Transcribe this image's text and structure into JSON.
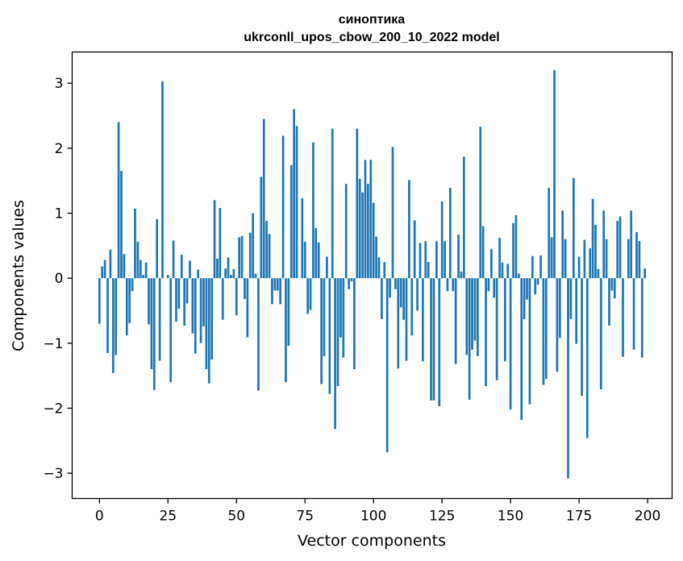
{
  "chart_data": {
    "type": "bar",
    "title": "синоптика",
    "subtitle": "ukrconll_upos_cbow_200_10_2022 model",
    "xlabel": "Vector components",
    "ylabel": "Components values",
    "xlim": [
      -9.95,
      208.95
    ],
    "ylim": [
      -3.39,
      3.48
    ],
    "xticks": [
      0,
      25,
      50,
      75,
      100,
      125,
      150,
      175,
      200
    ],
    "xtick_labels": [
      "0",
      "25",
      "50",
      "75",
      "100",
      "125",
      "150",
      "175",
      "200"
    ],
    "yticks": [
      -3,
      -2,
      -1,
      0,
      1,
      2,
      3
    ],
    "ytick_labels": [
      "−3",
      "−2",
      "−1",
      "0",
      "1",
      "2",
      "3"
    ],
    "grid": false,
    "bar_color": "#1f77b4",
    "x": [
      0,
      1,
      2,
      3,
      4,
      5,
      6,
      7,
      8,
      9,
      10,
      11,
      12,
      13,
      14,
      15,
      16,
      17,
      18,
      19,
      20,
      21,
      22,
      23,
      24,
      25,
      26,
      27,
      28,
      29,
      30,
      31,
      32,
      33,
      34,
      35,
      36,
      37,
      38,
      39,
      40,
      41,
      42,
      43,
      44,
      45,
      46,
      47,
      48,
      49,
      50,
      51,
      52,
      53,
      54,
      55,
      56,
      57,
      58,
      59,
      60,
      61,
      62,
      63,
      64,
      65,
      66,
      67,
      68,
      69,
      70,
      71,
      72,
      73,
      74,
      75,
      76,
      77,
      78,
      79,
      80,
      81,
      82,
      83,
      84,
      85,
      86,
      87,
      88,
      89,
      90,
      91,
      92,
      93,
      94,
      95,
      96,
      97,
      98,
      99,
      100,
      101,
      102,
      103,
      104,
      105,
      106,
      107,
      108,
      109,
      110,
      111,
      112,
      113,
      114,
      115,
      116,
      117,
      118,
      119,
      120,
      121,
      122,
      123,
      124,
      125,
      126,
      127,
      128,
      129,
      130,
      131,
      132,
      133,
      134,
      135,
      136,
      137,
      138,
      139,
      140,
      141,
      142,
      143,
      144,
      145,
      146,
      147,
      148,
      149,
      150,
      151,
      152,
      153,
      154,
      155,
      156,
      157,
      158,
      159,
      160,
      161,
      162,
      163,
      164,
      165,
      166,
      167,
      168,
      169,
      170,
      171,
      172,
      173,
      174,
      175,
      176,
      177,
      178,
      179,
      180,
      181,
      182,
      183,
      184,
      185,
      186,
      187,
      188,
      189,
      190,
      191,
      192,
      193,
      194,
      195,
      196,
      197,
      198,
      199
    ],
    "values": [
      -0.7,
      0.18,
      0.28,
      -1.15,
      0.44,
      -1.46,
      -1.18,
      2.4,
      1.65,
      0.37,
      -0.88,
      -0.69,
      -0.2,
      1.07,
      0.56,
      0.28,
      0.05,
      0.24,
      -0.71,
      -1.4,
      -1.72,
      0.91,
      -1.27,
      3.03,
      0.0,
      0.05,
      -1.6,
      0.58,
      -0.67,
      -0.47,
      0.36,
      -0.73,
      -0.39,
      0.27,
      -0.85,
      -1.16,
      0.13,
      -1.0,
      -0.74,
      -1.4,
      -1.62,
      -1.25,
      1.2,
      0.3,
      1.08,
      -0.64,
      0.15,
      0.32,
      0.05,
      0.14,
      -0.57,
      0.63,
      0.65,
      -0.32,
      -0.91,
      0.7,
      1.0,
      0.07,
      -1.73,
      1.56,
      2.45,
      0.88,
      0.68,
      -0.4,
      -0.19,
      -0.19,
      -0.4,
      2.19,
      -1.6,
      -1.04,
      1.74,
      2.6,
      2.34,
      0.0,
      1.23,
      0.56,
      -0.55,
      -0.49,
      2.09,
      0.77,
      0.55,
      -1.63,
      -1.2,
      0.33,
      -1.78,
      2.3,
      -2.32,
      -1.66,
      -0.91,
      -1.22,
      1.45,
      -0.17,
      -0.05,
      -1.4,
      2.3,
      1.53,
      1.32,
      1.82,
      1.45,
      1.82,
      1.16,
      0.64,
      0.32,
      -0.63,
      0.25,
      -2.68,
      -0.3,
      2.02,
      -0.17,
      -1.39,
      -0.45,
      -0.64,
      -1.27,
      1.51,
      -0.88,
      0.89,
      -0.5,
      0.54,
      -1.28,
      0.57,
      0.25,
      -1.88,
      -1.88,
      0.57,
      -1.97,
      1.18,
      0.57,
      -0.2,
      1.39,
      -0.2,
      -1.32,
      0.67,
      0.1,
      1.87,
      -1.18,
      -1.87,
      -1.1,
      -0.96,
      -1.2,
      2.33,
      0.8,
      -1.66,
      -0.2,
      0.45,
      -0.3,
      -1.57,
      0.62,
      0.24,
      -1.28,
      0.22,
      -2.02,
      0.85,
      0.97,
      0.07,
      -2.18,
      -0.63,
      -0.33,
      -1.94,
      0.34,
      -0.25,
      -0.1,
      0.35,
      -1.64,
      -1.55,
      1.39,
      0.63,
      3.2,
      -1.44,
      -0.92,
      1.04,
      0.6,
      -3.08,
      -0.63,
      1.54,
      -1.01,
      0.33,
      -1.81,
      0.59,
      -2.46,
      0.46,
      1.22,
      0.82,
      0.14,
      -1.71,
      1.04,
      0.6,
      -0.73,
      -0.19,
      -0.31,
      0.88,
      0.95,
      -1.21,
      0.0,
      0.6,
      1.04,
      -1.1,
      0.71,
      0.57,
      -1.22,
      0.15
    ]
  }
}
